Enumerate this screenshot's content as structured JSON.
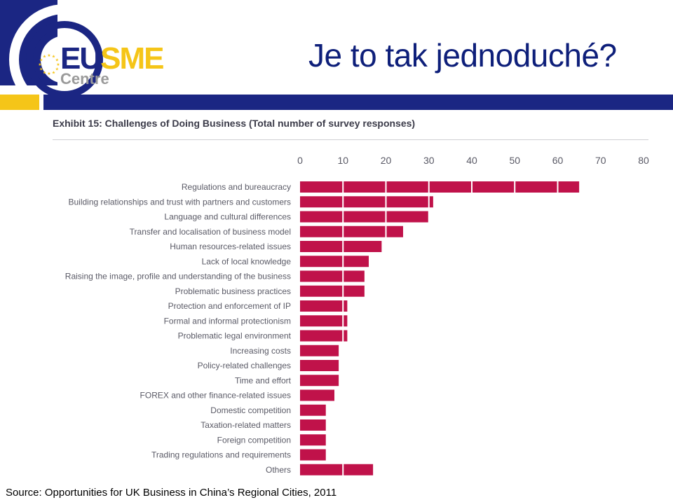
{
  "slide": {
    "title": "Je to tak jednoduché?",
    "source": "Source: Opportunities for UK Business in China’s Regional Cities, 2011"
  },
  "logo": {
    "primary": "EUSME",
    "secondary": "Centre",
    "colors": {
      "navy": "#1b2683",
      "yellow": "#f5c518"
    }
  },
  "colors": {
    "bar": "#c0124a",
    "divider": "#ffffff",
    "axis_text": "#5a5a66"
  },
  "chart_data": {
    "type": "bar",
    "orientation": "horizontal",
    "title": "Exhibit 15: Challenges of Doing Business (Total number of survey responses)",
    "xlim": [
      0,
      80
    ],
    "xticks": [
      0,
      10,
      20,
      30,
      40,
      50,
      60,
      70,
      80
    ],
    "grid": "vertical lines drawn over bars",
    "categories": [
      "Regulations and bureaucracy",
      "Building relationships and trust with partners and customers",
      "Language and cultural differences",
      "Transfer and localisation of business model",
      "Human resources-related issues",
      "Lack of local knowledge",
      "Raising the image, profile and understanding of the business",
      "Problematic business practices",
      "Protection and enforcement of IP",
      "Formal and informal protectionism",
      "Problematic legal environment",
      "Increasing costs",
      "Policy-related challenges",
      "Time and effort",
      "FOREX and other finance-related issues",
      "Domestic competition",
      "Taxation-related matters",
      "Foreign competition",
      "Trading regulations and requirements",
      "Others"
    ],
    "values": [
      65,
      31,
      30,
      24,
      19,
      16,
      15,
      15,
      11,
      11,
      11,
      9,
      9,
      9,
      8,
      6,
      6,
      6,
      6,
      17
    ]
  }
}
